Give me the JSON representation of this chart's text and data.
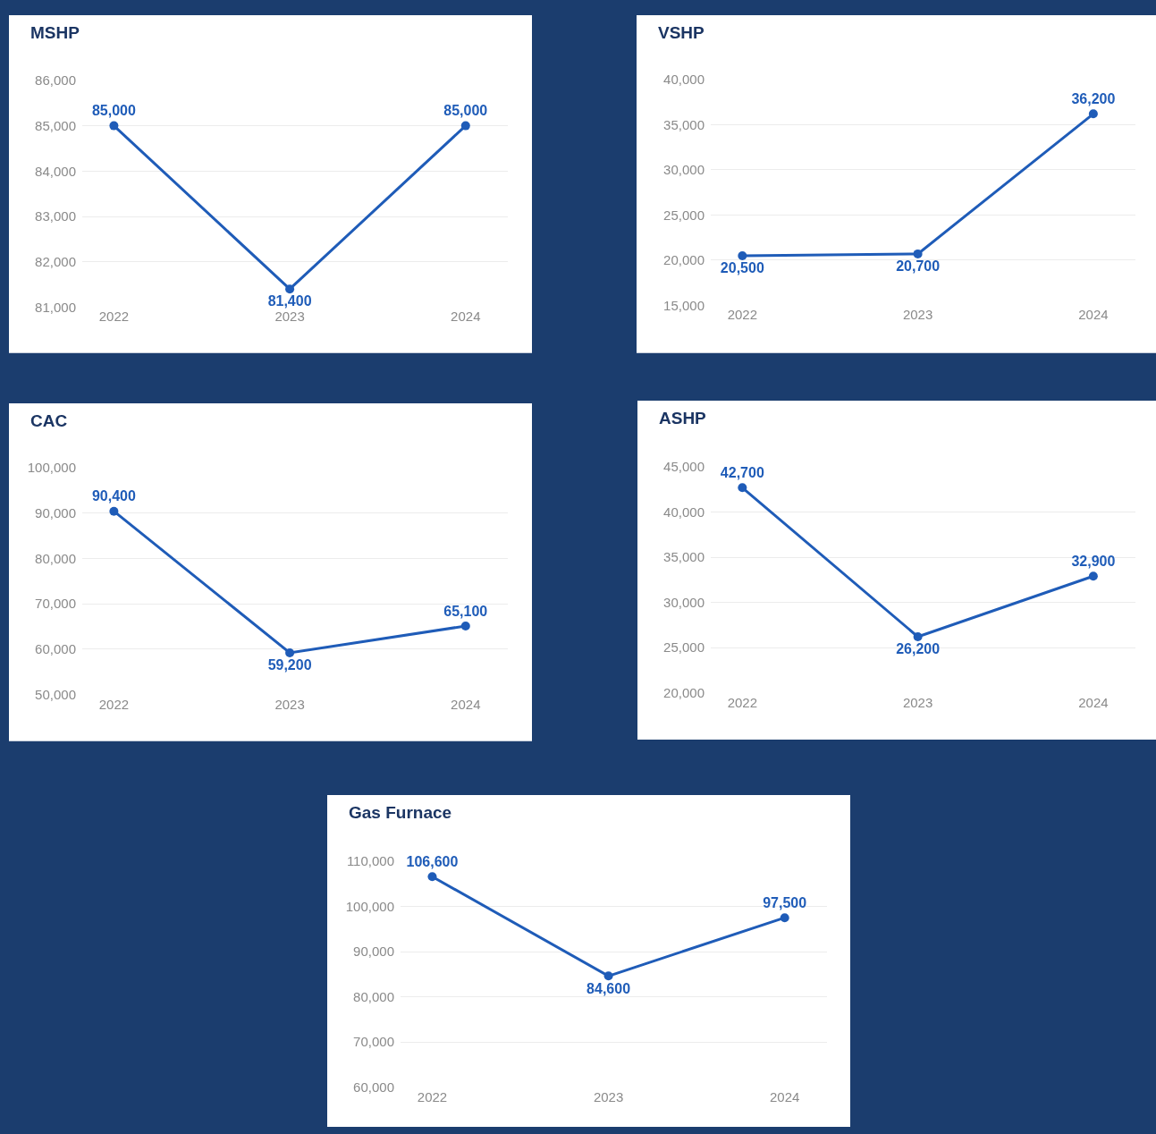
{
  "chart_data": [
    {
      "type": "line",
      "title": "MSHP",
      "categories": [
        "2022",
        "2023",
        "2024"
      ],
      "series": [
        {
          "color": "#1f5cb8",
          "values": [
            85000,
            81400,
            85000
          ],
          "value_labels": [
            "85,000",
            "81,400",
            "85,000"
          ]
        }
      ],
      "ylim": [
        81000,
        86000
      ],
      "yticks": [
        {
          "value": 81000,
          "label": "81,000"
        },
        {
          "value": 82000,
          "label": "82,000"
        },
        {
          "value": 83000,
          "label": "83,000"
        },
        {
          "value": 84000,
          "label": "84,000"
        },
        {
          "value": 85000,
          "label": "85,000"
        },
        {
          "value": 86000,
          "label": "86,000"
        }
      ],
      "grid": "y",
      "marker": "circle"
    },
    {
      "type": "line",
      "title": "VSHP",
      "categories": [
        "2022",
        "2023",
        "2024"
      ],
      "series": [
        {
          "color": "#1f5cb8",
          "values": [
            20500,
            20700,
            36200
          ],
          "value_labels": [
            "20,500",
            "20,700",
            "36,200"
          ]
        }
      ],
      "ylim": [
        15000,
        40000
      ],
      "yticks": [
        {
          "value": 15000,
          "label": "15,000"
        },
        {
          "value": 20000,
          "label": "20,000"
        },
        {
          "value": 25000,
          "label": "25,000"
        },
        {
          "value": 30000,
          "label": "30,000"
        },
        {
          "value": 35000,
          "label": "35,000"
        },
        {
          "value": 40000,
          "label": "40,000"
        }
      ],
      "grid": "y",
      "marker": "circle"
    },
    {
      "type": "line",
      "title": "CAC",
      "categories": [
        "2022",
        "2023",
        "2024"
      ],
      "series": [
        {
          "color": "#1f5cb8",
          "values": [
            90400,
            59200,
            65100
          ],
          "value_labels": [
            "90,400",
            "59,200",
            "65,100"
          ]
        }
      ],
      "ylim": [
        50000,
        100000
      ],
      "yticks": [
        {
          "value": 50000,
          "label": "50,000"
        },
        {
          "value": 60000,
          "label": "60,000"
        },
        {
          "value": 70000,
          "label": "70,000"
        },
        {
          "value": 80000,
          "label": "80,000"
        },
        {
          "value": 90000,
          "label": "90,000"
        },
        {
          "value": 100000,
          "label": "100,000"
        }
      ],
      "grid": "y",
      "marker": "circle"
    },
    {
      "type": "line",
      "title": "ASHP",
      "categories": [
        "2022",
        "2023",
        "2024"
      ],
      "series": [
        {
          "color": "#1f5cb8",
          "values": [
            42700,
            26200,
            32900
          ],
          "value_labels": [
            "42,700",
            "26,200",
            "32,900"
          ]
        }
      ],
      "ylim": [
        20000,
        45000
      ],
      "yticks": [
        {
          "value": 20000,
          "label": "20,000"
        },
        {
          "value": 25000,
          "label": "25,000"
        },
        {
          "value": 30000,
          "label": "30,000"
        },
        {
          "value": 35000,
          "label": "35,000"
        },
        {
          "value": 40000,
          "label": "40,000"
        },
        {
          "value": 45000,
          "label": "45,000"
        }
      ],
      "grid": "y",
      "marker": "circle"
    },
    {
      "type": "line",
      "title": "Gas Furnace",
      "categories": [
        "2022",
        "2023",
        "2024"
      ],
      "series": [
        {
          "color": "#1f5cb8",
          "values": [
            106600,
            84600,
            97500
          ],
          "value_labels": [
            "106,600",
            "84,600",
            "97,500"
          ]
        }
      ],
      "ylim": [
        60000,
        110000
      ],
      "yticks": [
        {
          "value": 60000,
          "label": "60,000"
        },
        {
          "value": 70000,
          "label": "70,000"
        },
        {
          "value": 80000,
          "label": "80,000"
        },
        {
          "value": 90000,
          "label": "90,000"
        },
        {
          "value": 100000,
          "label": "100,000"
        },
        {
          "value": 110000,
          "label": "110,000"
        }
      ],
      "grid": "y",
      "marker": "circle"
    }
  ]
}
